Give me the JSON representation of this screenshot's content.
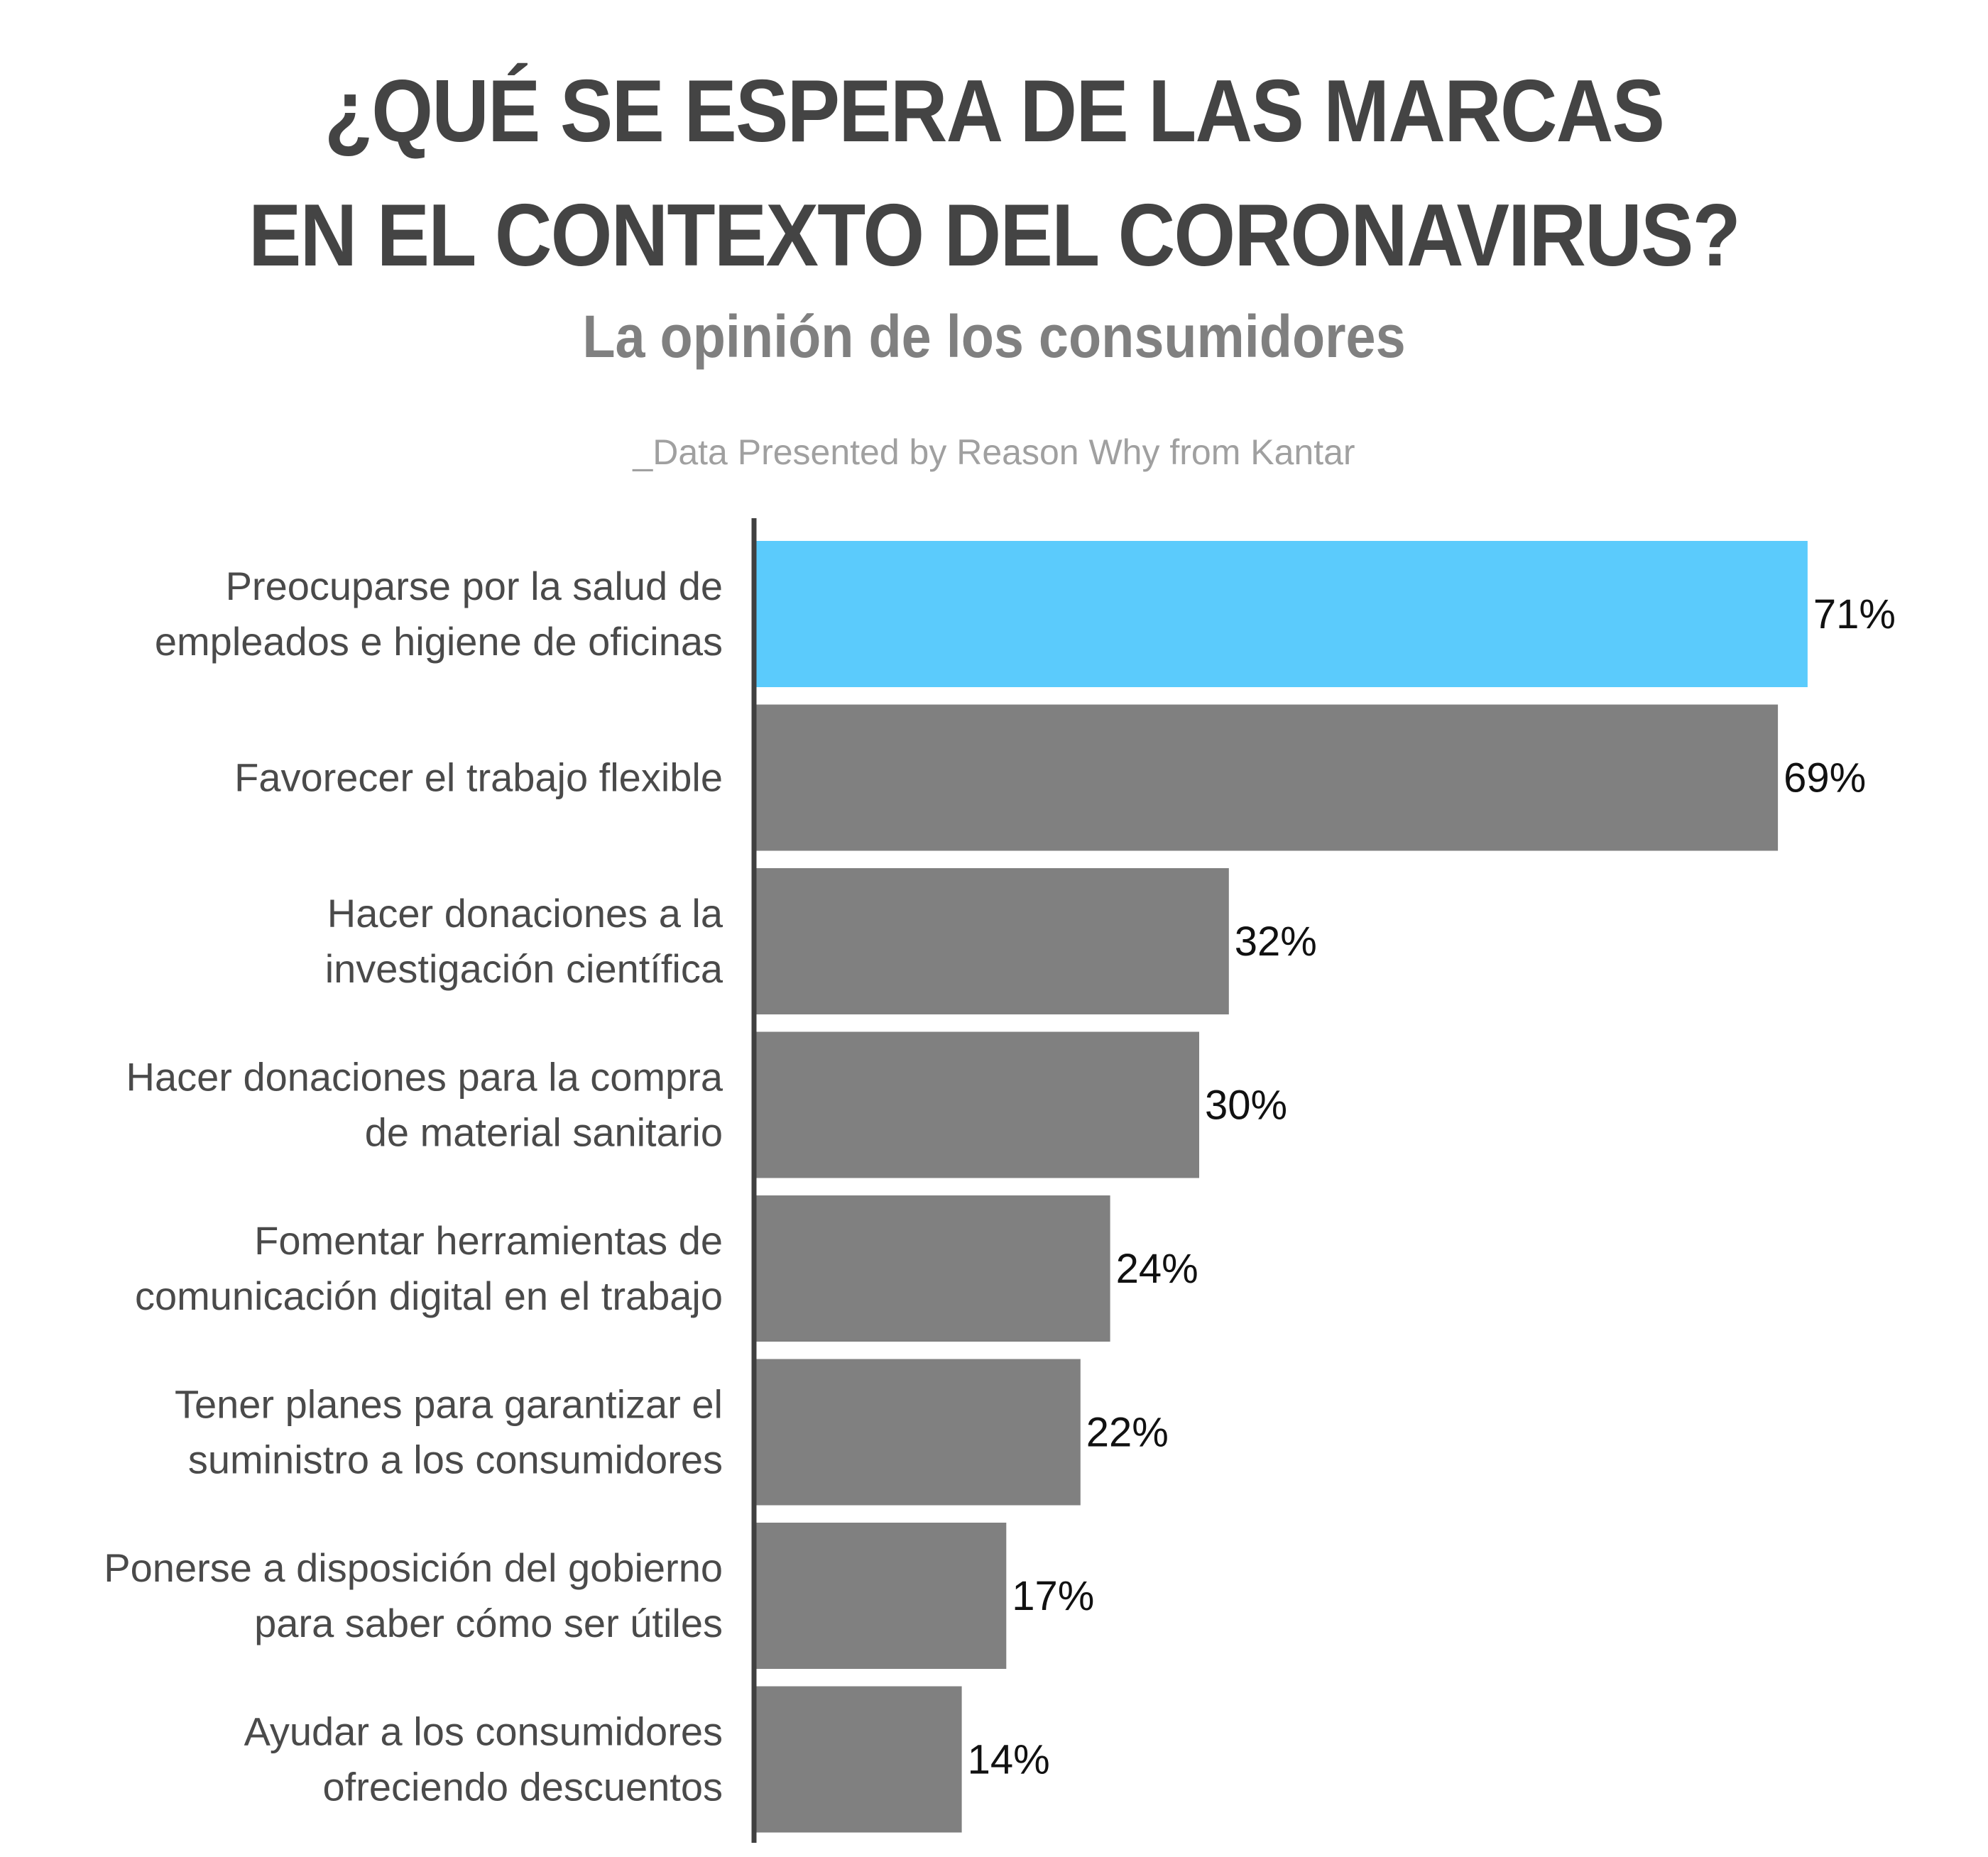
{
  "header": {
    "title_line1": "¿QUÉ SE ESPERA DE LAS MARCAS",
    "title_line2": "EN EL CONTEXTO DEL CORONAVIRUS?",
    "subtitle": "La opinión de los consumidores",
    "source": "_Data Presented by Reason Why from Kantar"
  },
  "chart_data": {
    "type": "bar",
    "orientation": "horizontal",
    "categories": [
      [
        "Preocuparse por la salud de",
        "empleados e higiene de oficinas"
      ],
      [
        "Favorecer el trabajo flexible"
      ],
      [
        "Hacer donaciones a la",
        "investigación científica"
      ],
      [
        "Hacer donaciones para la compra",
        "de material sanitario"
      ],
      [
        "Fomentar herramientas de",
        "comunicación digital en el trabajo"
      ],
      [
        "Tener planes para garantizar el",
        "suministro a los consumidores"
      ],
      [
        "Ponerse a disposición del gobierno",
        "para saber cómo ser útiles"
      ],
      [
        "Ayudar a los consumidores",
        "ofreciendo descuentos"
      ]
    ],
    "values": [
      71,
      69,
      32,
      30,
      24,
      22,
      17,
      14
    ],
    "value_labels": [
      "71%",
      "69%",
      "32%",
      "30%",
      "24%",
      "22%",
      "17%",
      "14%"
    ],
    "xlim": [
      0,
      100
    ],
    "grid": false,
    "legend": "none",
    "colors": {
      "highlight": "#5BCBFC",
      "default": "#808080",
      "axis": "#404040"
    },
    "highlight_index": 0
  }
}
